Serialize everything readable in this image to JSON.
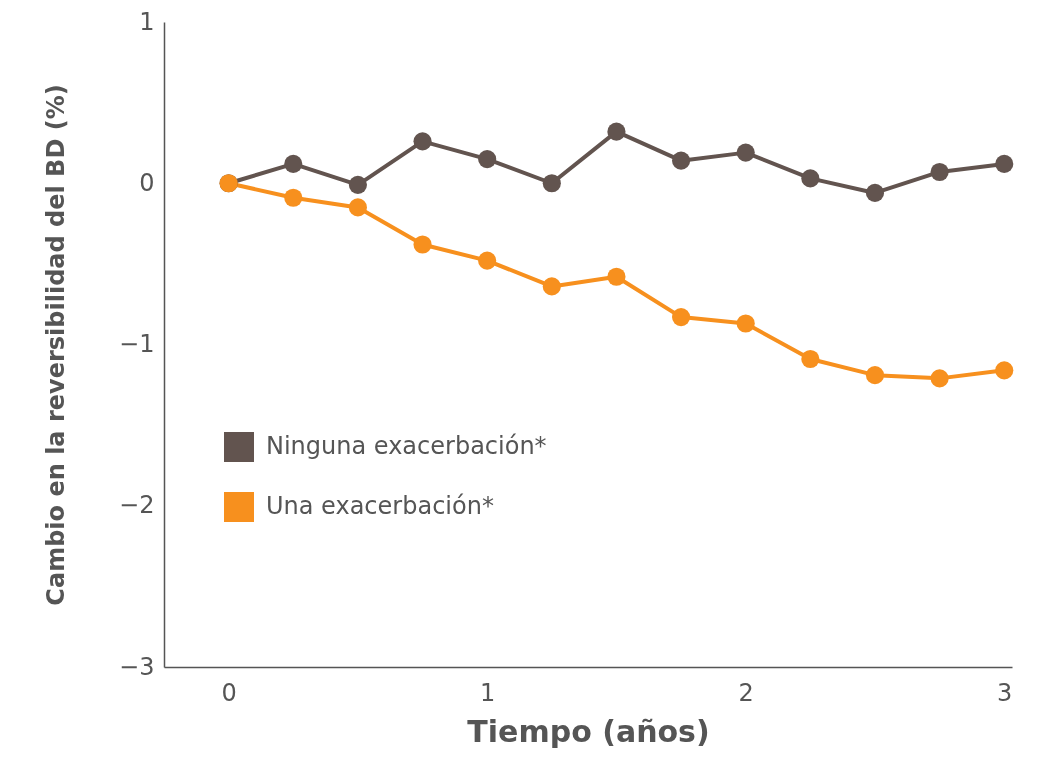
{
  "chart_data": {
    "type": "line",
    "xlabel": "Tiempo (años)",
    "ylabel": "Cambio en la reversibilidad del BD (%)",
    "x": [
      0,
      0.25,
      0.5,
      0.75,
      1,
      1.25,
      1.5,
      1.75,
      2,
      2.25,
      2.5,
      2.75,
      3
    ],
    "series": [
      {
        "name": "Ninguna exacerbación*",
        "color": "#62544f",
        "values": [
          0,
          0.12,
          -0.01,
          0.26,
          0.15,
          0,
          0.32,
          0.14,
          0.19,
          0.03,
          -0.06,
          0.07,
          0.12
        ]
      },
      {
        "name": "Una exacerbación*",
        "color": "#f7901e",
        "values": [
          0,
          -0.09,
          -0.15,
          -0.38,
          -0.48,
          -0.64,
          -0.58,
          -0.83,
          -0.87,
          -1.09,
          -1.19,
          -1.21,
          -1.16
        ]
      }
    ],
    "xlim": [
      -0.25,
      3.03
    ],
    "xticks": [
      0,
      1,
      2,
      3
    ],
    "ylim": [
      -3,
      1
    ],
    "yticks": [
      -3,
      -2,
      -1,
      0,
      1
    ],
    "grid": false,
    "legend": "left",
    "marker": "circle",
    "line_style": "solid"
  }
}
